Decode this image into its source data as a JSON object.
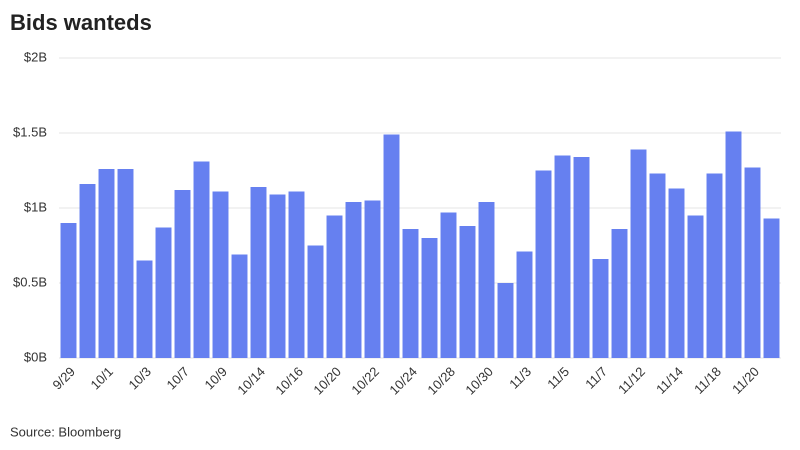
{
  "chart_data": {
    "type": "bar",
    "title": "Bids wanteds",
    "source": "Source: Bloomberg",
    "categories": [
      "9/29",
      null,
      "10/1",
      null,
      "10/3",
      null,
      "10/7",
      null,
      "10/9",
      null,
      "10/14",
      null,
      "10/16",
      null,
      "10/20",
      null,
      "10/22",
      null,
      "10/24",
      null,
      "10/28",
      null,
      "10/30",
      null,
      "11/3",
      null,
      "11/5",
      null,
      "11/7",
      null,
      "11/12",
      null,
      "11/14",
      null,
      "11/18",
      null,
      "11/20",
      null
    ],
    "values": [
      0.9,
      1.16,
      1.26,
      1.26,
      0.65,
      0.87,
      1.12,
      1.31,
      1.11,
      0.69,
      1.14,
      1.09,
      1.11,
      0.75,
      0.95,
      1.04,
      1.05,
      1.49,
      0.86,
      0.8,
      0.97,
      0.88,
      1.04,
      0.5,
      0.71,
      1.25,
      1.35,
      1.34,
      0.66,
      0.86,
      1.39,
      1.23,
      1.13,
      0.95,
      1.23,
      1.51,
      1.27,
      0.93
    ],
    "color": "#6680f0",
    "ylim": [
      0,
      2
    ],
    "yticks": [
      {
        "value": 0,
        "label": "$0B"
      },
      {
        "value": 0.5,
        "label": "$0.5B"
      },
      {
        "value": 1,
        "label": "$1B"
      },
      {
        "value": 1.5,
        "label": "$1.5B"
      },
      {
        "value": 2,
        "label": "$2B"
      }
    ],
    "grid": true
  }
}
